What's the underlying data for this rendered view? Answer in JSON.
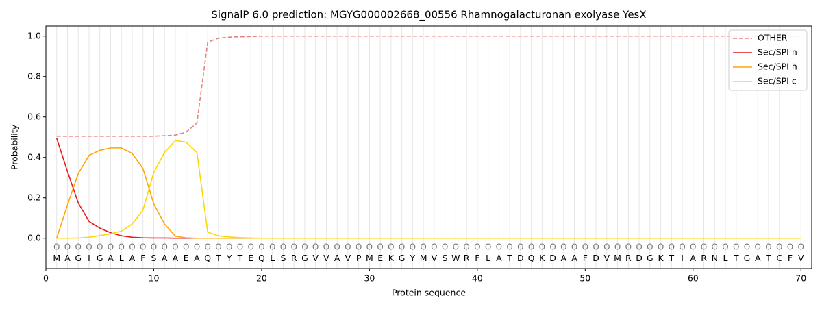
{
  "chart_data": {
    "type": "line",
    "title": "SignalP 6.0 prediction: MGYG000002668_00556 Rhamnogalacturonan exolyase YesX",
    "xlabel": "Protein sequence",
    "ylabel": "Probability",
    "x": [
      1,
      2,
      3,
      4,
      5,
      6,
      7,
      8,
      9,
      10,
      11,
      12,
      13,
      14,
      15,
      16,
      17,
      18,
      19,
      20,
      21,
      22,
      23,
      24,
      25,
      26,
      27,
      28,
      29,
      30,
      31,
      32,
      33,
      34,
      35,
      36,
      37,
      38,
      39,
      40,
      41,
      42,
      43,
      44,
      45,
      46,
      47,
      48,
      49,
      50,
      51,
      52,
      53,
      54,
      55,
      56,
      57,
      58,
      59,
      60,
      61,
      62,
      63,
      64,
      65,
      66,
      67,
      68,
      69,
      70
    ],
    "sequence": [
      "M",
      "A",
      "G",
      "I",
      "G",
      "A",
      "L",
      "A",
      "F",
      "S",
      "A",
      "A",
      "E",
      "A",
      "Q",
      "T",
      "Y",
      "T",
      "E",
      "Q",
      "L",
      "S",
      "R",
      "G",
      "V",
      "V",
      "A",
      "V",
      "P",
      "M",
      "E",
      "K",
      "G",
      "Y",
      "M",
      "V",
      "S",
      "W",
      "R",
      "F",
      "L",
      "A",
      "T",
      "D",
      "Q",
      "K",
      "D",
      "A",
      "A",
      "F",
      "D",
      "V",
      "M",
      "R",
      "D",
      "G",
      "K",
      "T",
      "I",
      "A",
      "R",
      "N",
      "L",
      "T",
      "G",
      "A",
      "T",
      "C",
      "F",
      "V"
    ],
    "state_labels": [
      "O",
      "O",
      "O",
      "O",
      "O",
      "O",
      "O",
      "O",
      "O",
      "O",
      "O",
      "O",
      "O",
      "O",
      "O",
      "O",
      "O",
      "O",
      "O",
      "O",
      "O",
      "O",
      "O",
      "O",
      "O",
      "O",
      "O",
      "O",
      "O",
      "O",
      "O",
      "O",
      "O",
      "O",
      "O",
      "O",
      "O",
      "O",
      "O",
      "O",
      "O",
      "O",
      "O",
      "O",
      "O",
      "O",
      "O",
      "O",
      "O",
      "O",
      "O",
      "O",
      "O",
      "O",
      "O",
      "O",
      "O",
      "O",
      "O",
      "O",
      "O",
      "O",
      "O",
      "O",
      "O",
      "O",
      "O",
      "O",
      "O",
      "O"
    ],
    "series": [
      {
        "name": "OTHER",
        "color": "#e77f7f",
        "line_style": "dashed",
        "values": [
          0.505,
          0.505,
          0.505,
          0.505,
          0.505,
          0.505,
          0.505,
          0.505,
          0.505,
          0.505,
          0.507,
          0.51,
          0.525,
          0.57,
          0.97,
          0.99,
          0.995,
          0.997,
          0.998,
          1,
          1,
          1,
          1,
          1,
          1,
          1,
          1,
          1,
          1,
          1,
          1,
          1,
          1,
          1,
          1,
          1,
          1,
          1,
          1,
          1,
          1,
          1,
          1,
          1,
          1,
          1,
          1,
          1,
          1,
          1,
          1,
          1,
          1,
          1,
          1,
          1,
          1,
          1,
          1,
          1,
          1,
          1,
          1,
          1,
          1,
          1,
          1,
          1,
          1,
          1
        ]
      },
      {
        "name": "Sec/SPI n",
        "color": "#e41a1c",
        "line_style": "solid",
        "values": [
          0.495,
          0.33,
          0.175,
          0.083,
          0.05,
          0.027,
          0.012,
          0.005,
          0.002,
          0.001,
          0.001,
          0,
          0,
          0,
          0,
          0,
          0,
          0,
          0,
          0,
          0,
          0,
          0,
          0,
          0,
          0,
          0,
          0,
          0,
          0,
          0,
          0,
          0,
          0,
          0,
          0,
          0,
          0,
          0,
          0,
          0,
          0,
          0,
          0,
          0,
          0,
          0,
          0,
          0,
          0,
          0,
          0,
          0,
          0,
          0,
          0,
          0,
          0,
          0,
          0,
          0,
          0,
          0,
          0,
          0,
          0,
          0,
          0,
          0,
          0
        ]
      },
      {
        "name": "Sec/SPI h",
        "color": "#ffa500",
        "line_style": "solid",
        "values": [
          0,
          0.165,
          0.32,
          0.41,
          0.435,
          0.447,
          0.447,
          0.42,
          0.345,
          0.17,
          0.07,
          0.01,
          0.002,
          0,
          0,
          0,
          0,
          0,
          0,
          0,
          0,
          0,
          0,
          0,
          0,
          0,
          0,
          0,
          0,
          0,
          0,
          0,
          0,
          0,
          0,
          0,
          0,
          0,
          0,
          0,
          0,
          0,
          0,
          0,
          0,
          0,
          0,
          0,
          0,
          0,
          0,
          0,
          0,
          0,
          0,
          0,
          0,
          0,
          0,
          0,
          0,
          0,
          0,
          0,
          0,
          0,
          0,
          0,
          0,
          0
        ]
      },
      {
        "name": "Sec/SPI c",
        "color": "#ffd700",
        "line_style": "solid",
        "values": [
          0,
          0,
          0.001,
          0.005,
          0.013,
          0.022,
          0.035,
          0.07,
          0.14,
          0.325,
          0.425,
          0.483,
          0.475,
          0.425,
          0.03,
          0.012,
          0.006,
          0.003,
          0.001,
          0,
          0,
          0,
          0,
          0,
          0,
          0,
          0,
          0,
          0,
          0,
          0,
          0,
          0,
          0,
          0,
          0,
          0,
          0,
          0,
          0,
          0,
          0,
          0,
          0,
          0,
          0,
          0,
          0,
          0,
          0,
          0,
          0,
          0,
          0,
          0,
          0,
          0,
          0,
          0,
          0,
          0,
          0,
          0,
          0,
          0,
          0,
          0,
          0,
          0,
          0
        ]
      }
    ],
    "xlim": [
      0,
      71
    ],
    "xticks": [
      0,
      10,
      20,
      30,
      40,
      50,
      60,
      70
    ],
    "ylim": [
      -0.15,
      1.05
    ],
    "yticks": [
      {
        "value": 0,
        "label": "0.0"
      },
      0.2,
      0.4,
      0.6,
      0.8,
      {
        "value": 1,
        "label": "1.0"
      }
    ],
    "legend": "upper right"
  }
}
